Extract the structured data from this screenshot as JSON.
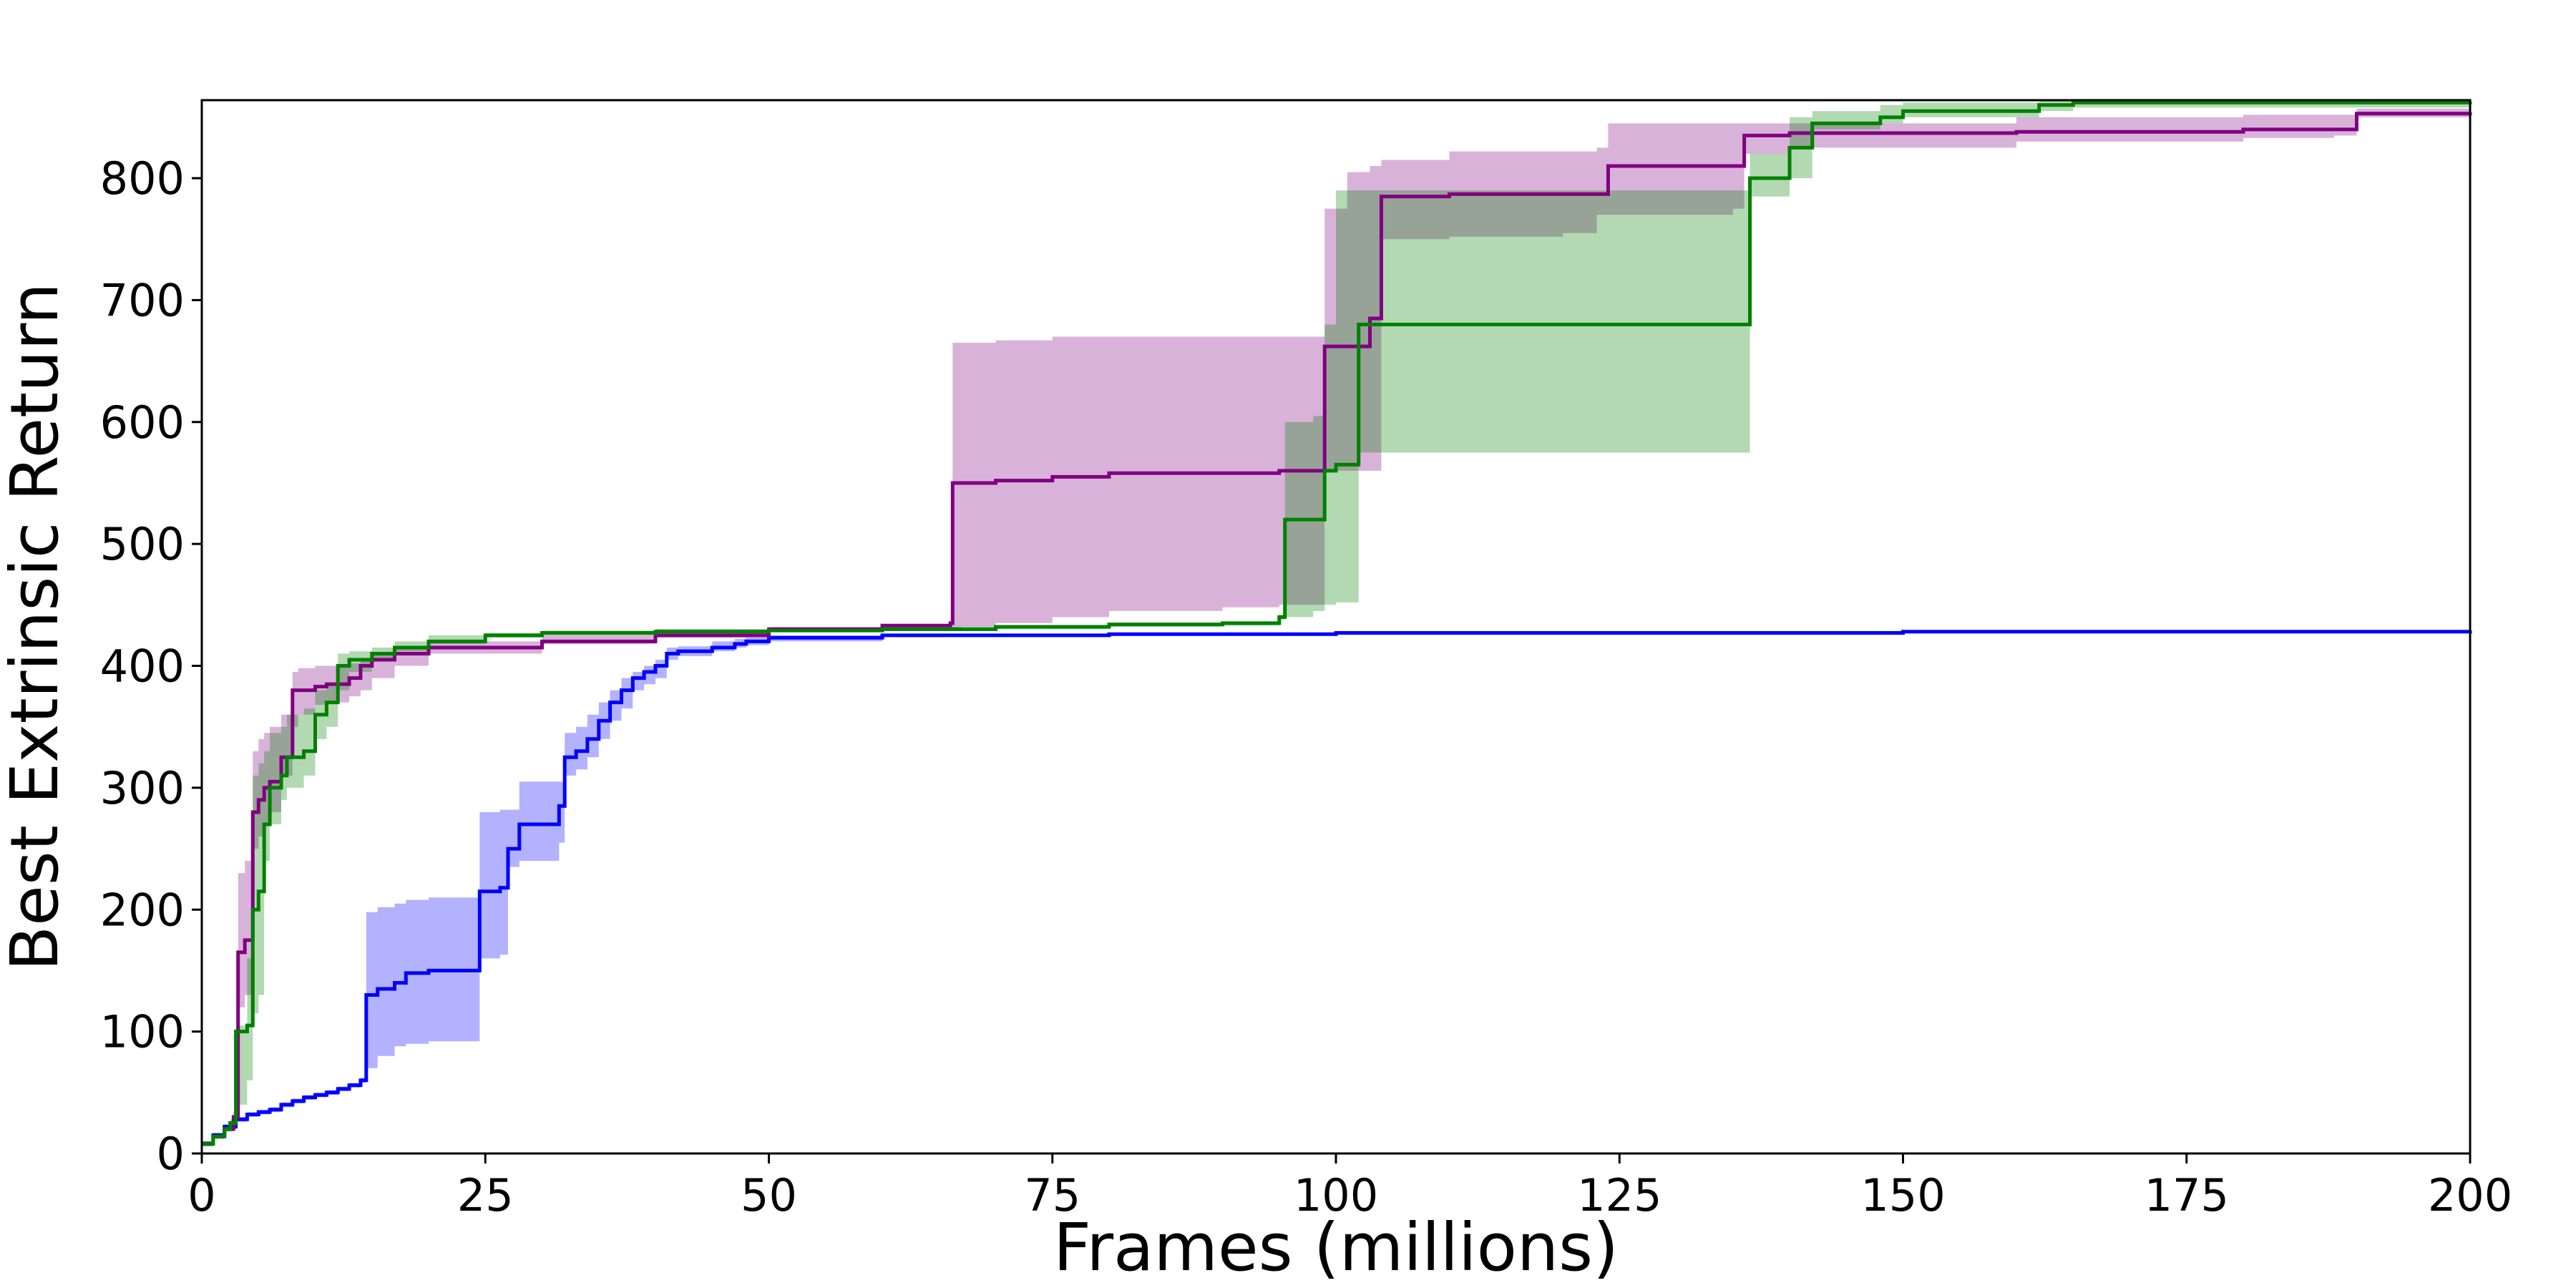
{
  "chart_data": {
    "type": "line",
    "title": "",
    "xlabel": "Frames (millions)",
    "ylabel": "Best Extrinsic Return",
    "xlim": [
      0,
      200
    ],
    "ylim": [
      0,
      864
    ],
    "xticks": [
      0,
      25,
      50,
      75,
      100,
      125,
      150,
      175,
      200
    ],
    "yticks": [
      0,
      100,
      200,
      300,
      400,
      500,
      600,
      700,
      800
    ],
    "grid": false,
    "legend": "none",
    "series": [
      {
        "color": "#0000ff",
        "band_color": "#0000ff",
        "step": true,
        "x": [
          0,
          1,
          2,
          3,
          4,
          5,
          6,
          7,
          8,
          9,
          10,
          11,
          12,
          13,
          14,
          14.5,
          15.5,
          17,
          18,
          20,
          23.8,
          24.5,
          26.3,
          27,
          28,
          31.5,
          32,
          33,
          34,
          35,
          36,
          37,
          38,
          39,
          40,
          41,
          42,
          45,
          47,
          48,
          50,
          60,
          80,
          100,
          150,
          200
        ],
        "y": [
          8,
          15,
          22,
          28,
          32,
          34,
          36,
          40,
          43,
          46,
          48,
          50,
          53,
          56,
          60,
          130,
          135,
          140,
          148,
          150,
          150,
          215,
          218,
          250,
          270,
          285,
          325,
          330,
          340,
          355,
          370,
          380,
          390,
          395,
          400,
          410,
          412,
          415,
          418,
          420,
          423,
          425,
          426,
          427,
          428,
          429
        ],
        "lower": [
          6,
          13,
          20,
          26,
          30,
          32,
          34,
          38,
          41,
          44,
          46,
          48,
          51,
          54,
          58,
          70,
          80,
          88,
          90,
          92,
          92,
          160,
          163,
          235,
          240,
          255,
          310,
          315,
          325,
          340,
          355,
          365,
          380,
          385,
          390,
          405,
          408,
          412,
          415,
          417,
          420,
          424,
          425,
          426,
          427,
          428
        ],
        "upper": [
          10,
          17,
          24,
          30,
          34,
          36,
          38,
          42,
          45,
          48,
          50,
          52,
          55,
          58,
          62,
          198,
          202,
          205,
          208,
          210,
          210,
          280,
          282,
          282,
          305,
          305,
          345,
          350,
          360,
          370,
          380,
          390,
          395,
          400,
          405,
          415,
          416,
          420,
          422,
          423,
          425,
          426,
          427,
          428,
          429,
          430
        ]
      },
      {
        "color": "#800080",
        "band_color": "#800080",
        "step": true,
        "x": [
          0,
          1,
          2,
          2.8,
          3.2,
          3.8,
          4.5,
          5,
          5.5,
          6,
          7,
          8,
          8.5,
          10,
          11,
          13,
          14,
          15,
          17,
          20,
          30,
          40,
          50,
          60,
          66,
          66.2,
          67,
          70,
          75,
          80,
          90,
          95,
          97.5,
          99,
          101,
          103,
          104,
          110,
          120,
          123,
          124,
          135,
          136,
          140,
          160,
          180,
          188,
          190,
          200
        ],
        "y": [
          8,
          14,
          20,
          30,
          165,
          175,
          280,
          290,
          300,
          305,
          325,
          380,
          380,
          383,
          385,
          390,
          400,
          405,
          410,
          415,
          420,
          425,
          430,
          433,
          435,
          550,
          550,
          552,
          555,
          558,
          558,
          560,
          560,
          662,
          662,
          685,
          785,
          787,
          787,
          787,
          810,
          810,
          835,
          837,
          838,
          840,
          840,
          853,
          854
        ],
        "lower": [
          6,
          12,
          18,
          26,
          120,
          130,
          250,
          260,
          270,
          280,
          310,
          350,
          360,
          368,
          370,
          375,
          380,
          390,
          400,
          410,
          418,
          423,
          428,
          431,
          433,
          430,
          432,
          435,
          440,
          445,
          448,
          450,
          450,
          560,
          560,
          560,
          750,
          752,
          755,
          770,
          770,
          775,
          820,
          825,
          830,
          833,
          835,
          850,
          851
        ],
        "upper": [
          10,
          16,
          22,
          34,
          230,
          240,
          330,
          340,
          345,
          350,
          360,
          395,
          398,
          400,
          400,
          402,
          405,
          410,
          415,
          420,
          425,
          430,
          432,
          434,
          436,
          665,
          665,
          667,
          670,
          670,
          670,
          670,
          670,
          775,
          805,
          810,
          815,
          822,
          822,
          825,
          845,
          845,
          845,
          845,
          850,
          852,
          852,
          857,
          857
        ]
      },
      {
        "color": "#008000",
        "band_color": "#008000",
        "step": true,
        "x": [
          0,
          1,
          2,
          2.5,
          3,
          4,
          4.5,
          5,
          5.5,
          6,
          7,
          7.5,
          9,
          10,
          11,
          12,
          13,
          15,
          17,
          20,
          25,
          30,
          40,
          50,
          60,
          70,
          80,
          90,
          95,
          95.5,
          98,
          99,
          100,
          102,
          136,
          136.5,
          140,
          142,
          148,
          150,
          162,
          165,
          200
        ],
        "y": [
          8,
          14,
          20,
          25,
          100,
          105,
          200,
          215,
          270,
          300,
          310,
          325,
          330,
          360,
          370,
          400,
          405,
          410,
          415,
          420,
          425,
          427,
          428,
          429,
          430,
          432,
          434,
          435,
          440,
          520,
          520,
          560,
          565,
          680,
          680,
          800,
          825,
          845,
          850,
          855,
          860,
          862,
          863
        ],
        "lower": [
          6,
          12,
          18,
          22,
          40,
          60,
          115,
          130,
          240,
          270,
          290,
          300,
          310,
          340,
          350,
          380,
          395,
          405,
          412,
          418,
          423,
          425,
          427,
          428,
          429,
          430,
          432,
          433,
          438,
          440,
          445,
          450,
          452,
          575,
          575,
          785,
          800,
          840,
          845,
          850,
          855,
          858,
          860
        ],
        "upper": [
          10,
          16,
          22,
          28,
          105,
          160,
          310,
          320,
          330,
          345,
          350,
          360,
          365,
          380,
          385,
          410,
          412,
          415,
          420,
          425,
          427,
          429,
          430,
          431,
          432,
          433,
          435,
          436,
          442,
          600,
          605,
          680,
          790,
          790,
          790,
          820,
          850,
          855,
          860,
          862,
          864,
          865,
          865
        ]
      }
    ]
  }
}
